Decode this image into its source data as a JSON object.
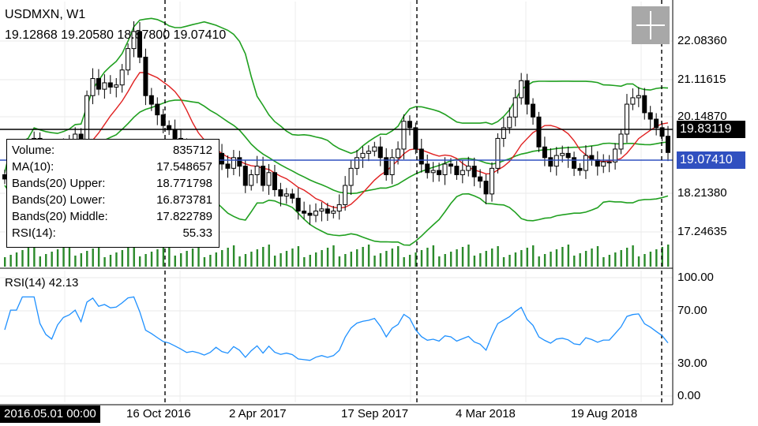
{
  "header": {
    "symbol": "USDMXN, W1",
    "ohlc": "19.12868 19.20580 18.87800 19.07410"
  },
  "data_window": {
    "rows": [
      {
        "label": "Volume:",
        "value": "835712"
      },
      {
        "label": "MA(10):",
        "value": "17.548657"
      },
      {
        "label": "Bands(20) Upper:",
        "value": "18.771798"
      },
      {
        "label": "Bands(20) Lower:",
        "value": "16.873781"
      },
      {
        "label": "Bands(20) Middle:",
        "value": "17.822789"
      },
      {
        "label": "RSI(14):",
        "value": "55.33"
      }
    ]
  },
  "price_axis": {
    "ticks": [
      "22.08360",
      "21.11615",
      "20.14870",
      "18.21380",
      "17.24635"
    ],
    "hline_tag": "19.83119",
    "current_tag": "19.07410"
  },
  "rsi_panel": {
    "title": "RSI(14) 42.13",
    "ticks": [
      "100.00",
      "70.00",
      "30.00",
      "0.00"
    ]
  },
  "time_axis": {
    "crosshair_date": "2016.05.01 00:00",
    "ticks": [
      "16 Oct 2016",
      "2 Apr 2017",
      "17 Sep 2017",
      "4 Mar 2018",
      "19 Aug 2018"
    ]
  },
  "colors": {
    "bands": "#20a020",
    "ma": "#e02020",
    "rsi": "#1e90ff",
    "current_price": "#3050c0",
    "volume": "#2a8a2a",
    "candle": "#000000"
  },
  "chart_data": {
    "type": "candlestick",
    "symbol": "USDMXN",
    "timeframe": "W1",
    "price_range": [
      16.4,
      22.6
    ],
    "rsi_range": [
      0,
      100
    ],
    "closes": [
      18.45,
      18.85,
      18.95,
      18.9,
      19.05,
      19.4,
      18.9,
      18.7,
      18.6,
      18.95,
      19.2,
      19.3,
      19.5,
      19.25,
      20.4,
      20.8,
      20.55,
      20.7,
      20.6,
      20.65,
      21.0,
      21.5,
      21.9,
      21.3,
      20.4,
      20.2,
      19.95,
      19.7,
      19.6,
      19.4,
      19.2,
      18.95,
      19.0,
      18.9,
      18.75,
      18.85,
      19.05,
      18.8,
      18.7,
      18.95,
      18.75,
      18.3,
      18.55,
      18.75,
      18.3,
      18.6,
      18.2,
      18.05,
      18.1,
      18.0,
      17.7,
      17.65,
      17.6,
      17.7,
      17.75,
      17.65,
      17.7,
      17.85,
      18.3,
      18.7,
      18.95,
      19.05,
      19.1,
      19.2,
      18.95,
      18.55,
      18.95,
      19.15,
      19.8,
      19.65,
      19.15,
      18.8,
      18.6,
      18.65,
      18.55,
      18.8,
      18.75,
      18.55,
      18.65,
      18.75,
      18.5,
      18.4,
      18.1,
      18.7,
      19.4,
      19.65,
      19.9,
      20.35,
      20.75,
      20.2,
      19.9,
      19.2,
      18.95,
      18.75,
      19.0,
      19.05,
      18.95,
      18.7,
      18.65,
      19.0,
      18.9,
      18.75,
      18.85,
      18.85,
      19.15,
      19.5,
      20.2,
      20.35,
      20.4,
      20.0,
      19.85,
      19.65,
      19.45,
      19.07
    ]
  }
}
